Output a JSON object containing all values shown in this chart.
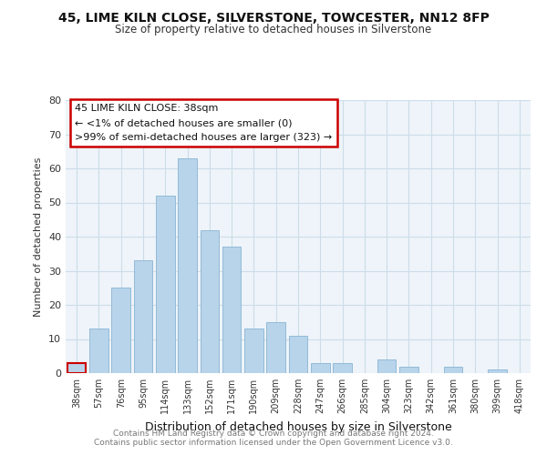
{
  "title1": "45, LIME KILN CLOSE, SILVERSTONE, TOWCESTER, NN12 8FP",
  "title2": "Size of property relative to detached houses in Silverstone",
  "xlabel": "Distribution of detached houses by size in Silverstone",
  "ylabel": "Number of detached properties",
  "bar_color": "#b8d4ea",
  "bar_edge_color": "#8ab4d4",
  "categories": [
    "38sqm",
    "57sqm",
    "76sqm",
    "95sqm",
    "114sqm",
    "133sqm",
    "152sqm",
    "171sqm",
    "190sqm",
    "209sqm",
    "228sqm",
    "247sqm",
    "266sqm",
    "285sqm",
    "304sqm",
    "323sqm",
    "342sqm",
    "361sqm",
    "380sqm",
    "399sqm",
    "418sqm"
  ],
  "values": [
    3,
    13,
    25,
    33,
    52,
    63,
    42,
    37,
    13,
    15,
    11,
    3,
    3,
    0,
    4,
    2,
    0,
    2,
    0,
    1,
    0
  ],
  "ylim": [
    0,
    80
  ],
  "yticks": [
    0,
    10,
    20,
    30,
    40,
    50,
    60,
    70,
    80
  ],
  "annotation_line1": "45 LIME KILN CLOSE: 38sqm",
  "annotation_line2": "← <1% of detached houses are smaller (0)",
  "annotation_line3": ">99% of semi-detached houses are larger (323) →",
  "annotation_box_color": "#ffffff",
  "annotation_box_edge_color": "#cc0000",
  "highlight_bar_index": 0,
  "footnote1": "Contains HM Land Registry data © Crown copyright and database right 2024.",
  "footnote2": "Contains public sector information licensed under the Open Government Licence v3.0.",
  "grid_color": "#ccdde8",
  "background_color": "#eef4f9"
}
